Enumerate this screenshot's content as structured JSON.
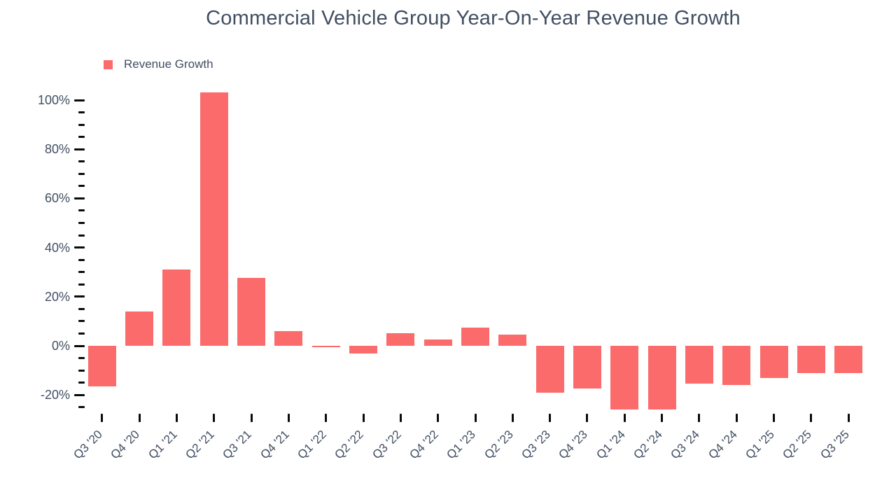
{
  "title": "Commercial Vehicle Group Year-On-Year Revenue Growth",
  "legend": {
    "label": "Revenue Growth"
  },
  "colors": {
    "bar": "#fc6b6b",
    "text": "#414e62",
    "tick": "#0b0b0b",
    "background": "#ffffff"
  },
  "chart_data": {
    "type": "bar",
    "title": "Commercial Vehicle Group Year-On-Year Revenue Growth",
    "series_name": "Revenue Growth",
    "categories": [
      "Q3 '20",
      "Q4 '20",
      "Q1 '21",
      "Q2 '21",
      "Q3 '21",
      "Q4 '21",
      "Q1 '22",
      "Q2 '22",
      "Q3 '22",
      "Q4 '22",
      "Q1 '23",
      "Q2 '23",
      "Q3 '23",
      "Q4 '23",
      "Q1 '24",
      "Q2 '24",
      "Q3 '24",
      "Q4 '24",
      "Q1 '25",
      "Q2 '25",
      "Q3 '25"
    ],
    "values": [
      -16.5,
      14,
      31,
      103,
      27.5,
      6,
      -0.5,
      -3,
      5,
      2.5,
      7.5,
      4.5,
      -19,
      -17.5,
      -26,
      -26,
      -15.5,
      -16,
      -13,
      -11,
      -11
    ],
    "value_unit": "%",
    "xlabel": "",
    "ylabel": "",
    "grid": false,
    "legend_position": "top-left",
    "y_axis": {
      "major_ticks": [
        {
          "value": 100,
          "label": "100%"
        },
        {
          "value": 80,
          "label": "80%"
        },
        {
          "value": 60,
          "label": "60%"
        },
        {
          "value": 40,
          "label": "40%"
        },
        {
          "value": 20,
          "label": "20%"
        },
        {
          "value": 0,
          "label": "0%"
        },
        {
          "value": -20,
          "label": "-20%"
        }
      ],
      "minor_tick_step": 5,
      "minor_tick_range": [
        -25,
        95
      ],
      "range": [
        -25,
        100
      ]
    }
  }
}
